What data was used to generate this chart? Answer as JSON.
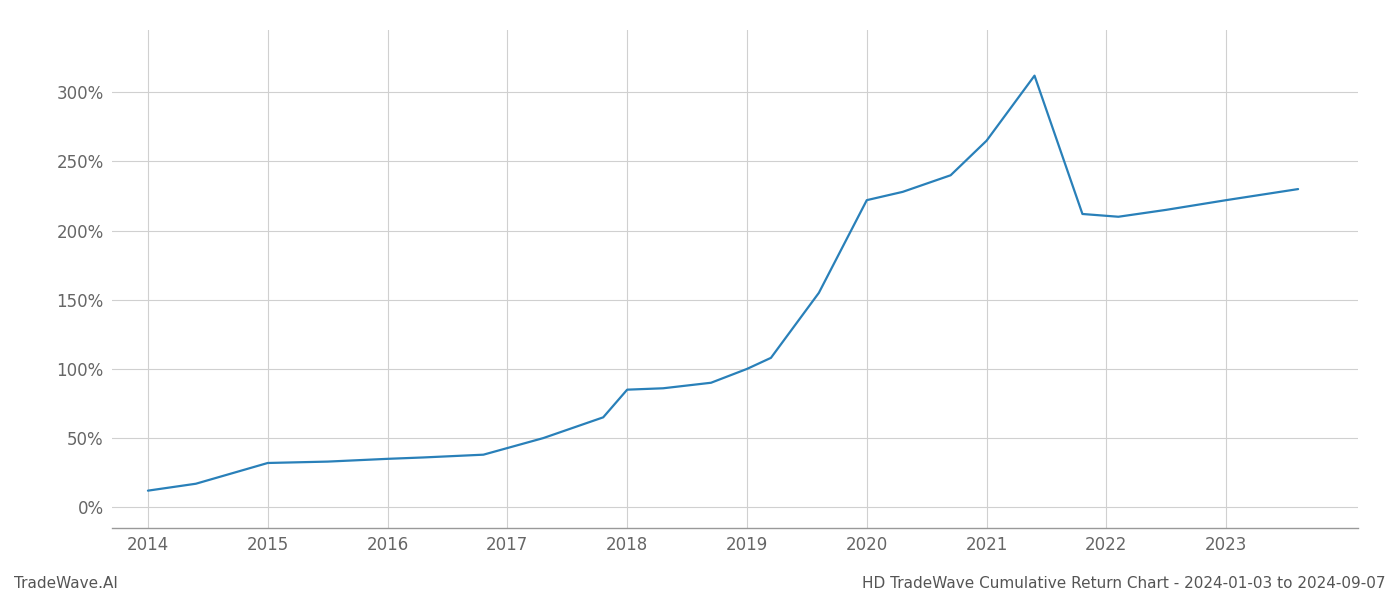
{
  "x_years": [
    2014,
    2015,
    2016,
    2017,
    2018,
    2019,
    2020,
    2021,
    2022,
    2023
  ],
  "x_values": [
    2014.0,
    2014.4,
    2015.0,
    2015.5,
    2016.0,
    2016.3,
    2016.8,
    2017.3,
    2017.8,
    2018.0,
    2018.3,
    2018.7,
    2019.0,
    2019.2,
    2019.6,
    2020.0,
    2020.3,
    2020.7,
    2021.0,
    2021.4,
    2021.8,
    2022.1,
    2022.5,
    2023.0,
    2023.6
  ],
  "y_values": [
    12,
    17,
    32,
    33,
    35,
    36,
    38,
    50,
    65,
    85,
    86,
    90,
    100,
    108,
    155,
    222,
    228,
    240,
    265,
    312,
    212,
    210,
    215,
    222,
    230
  ],
  "line_color": "#2980b9",
  "line_width": 1.6,
  "ytick_labels": [
    "0%",
    "50%",
    "100%",
    "150%",
    "200%",
    "250%",
    "300%"
  ],
  "ytick_values": [
    0,
    50,
    100,
    150,
    200,
    250,
    300
  ],
  "ylim": [
    -15,
    345
  ],
  "xlim": [
    2013.7,
    2024.1
  ],
  "footer_left": "TradeWave.AI",
  "footer_right": "HD TradeWave Cumulative Return Chart - 2024-01-03 to 2024-09-07",
  "background_color": "#ffffff",
  "grid_color": "#d0d0d0",
  "spine_color": "#999999",
  "tick_label_color": "#666666",
  "footer_color": "#555555",
  "footer_fontsize": 11,
  "tick_fontsize": 12
}
